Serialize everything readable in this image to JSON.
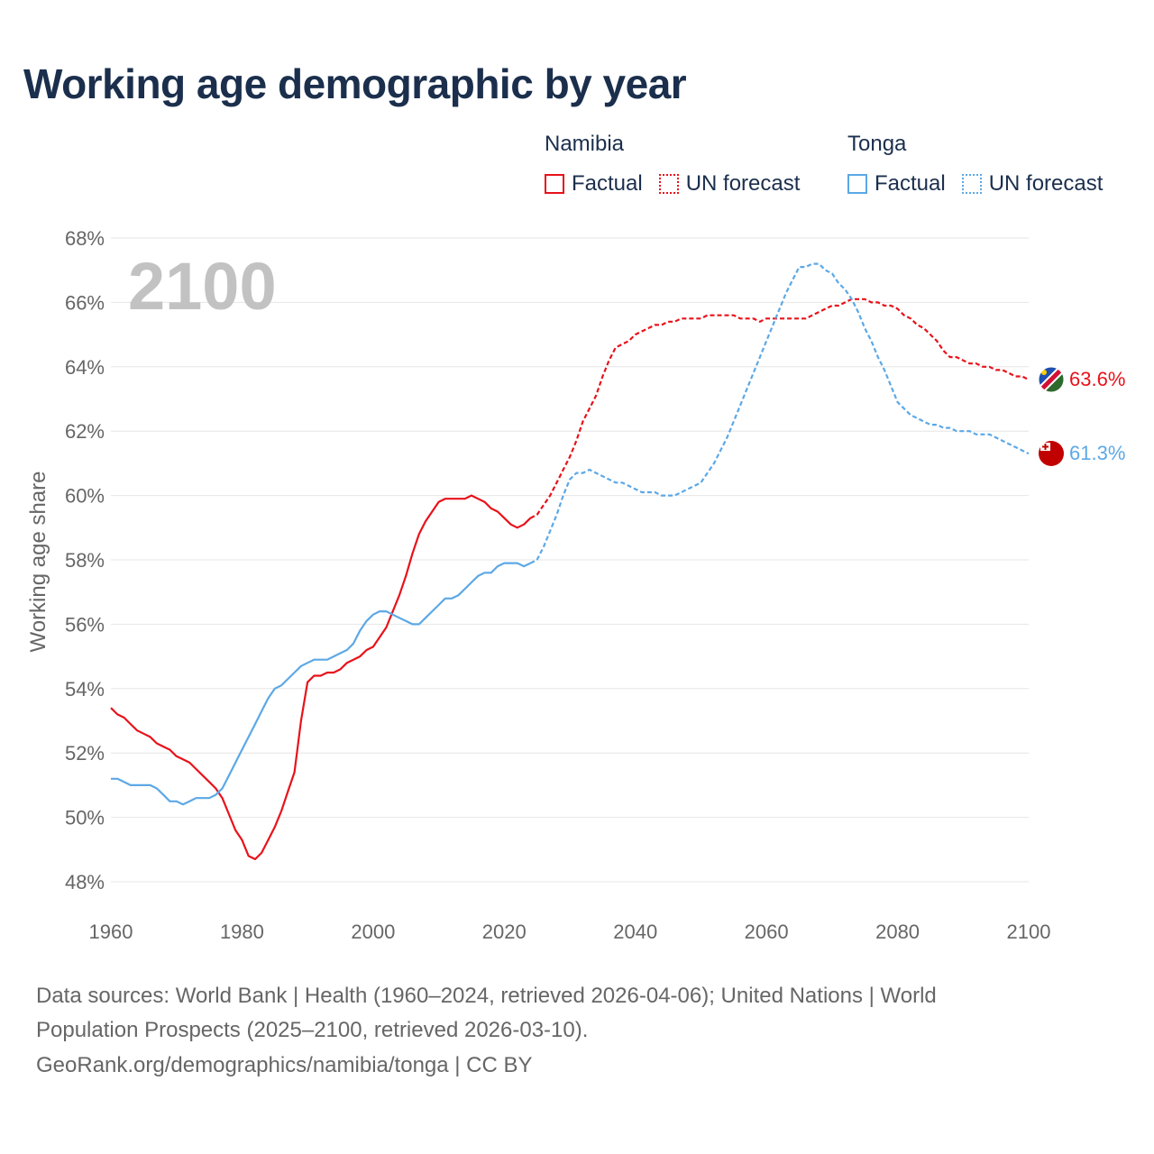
{
  "title": "Working age demographic by year",
  "legend": {
    "groups": [
      {
        "country": "Namibia",
        "factual_label": "Factual",
        "forecast_label": "UN forecast",
        "color": "#e8121a"
      },
      {
        "country": "Tonga",
        "factual_label": "Factual",
        "forecast_label": "UN forecast",
        "color": "#5ca8e6"
      }
    ]
  },
  "source": {
    "line1": "Data sources: World Bank | Health (1960–2024, retrieved 2026-04-06); United Nations | World",
    "line2": "Population Prospects (2025–2100, retrieved 2026-03-10).",
    "line3": "GeoRank.org/demographics/namibia/tonga | CC BY"
  },
  "chart_data": {
    "type": "line",
    "year_watermark": "2100",
    "ylabel": "Working age share",
    "xlim": [
      1960,
      2100
    ],
    "ylim": [
      48,
      68
    ],
    "x_ticks": [
      "1960",
      "1980",
      "2000",
      "2020",
      "2040",
      "2060",
      "2080",
      "2100"
    ],
    "y_ticks": [
      "48%",
      "50%",
      "52%",
      "54%",
      "56%",
      "58%",
      "60%",
      "62%",
      "64%",
      "66%",
      "68%"
    ],
    "grid": true,
    "series": [
      {
        "name": "Namibia",
        "color": "#e8121a",
        "end_label": "63.6%",
        "factual": [
          [
            1960,
            53.4
          ],
          [
            1961,
            53.2
          ],
          [
            1962,
            53.1
          ],
          [
            1963,
            52.9
          ],
          [
            1964,
            52.7
          ],
          [
            1965,
            52.6
          ],
          [
            1966,
            52.5
          ],
          [
            1967,
            52.3
          ],
          [
            1968,
            52.2
          ],
          [
            1969,
            52.1
          ],
          [
            1970,
            51.9
          ],
          [
            1971,
            51.8
          ],
          [
            1972,
            51.7
          ],
          [
            1973,
            51.5
          ],
          [
            1974,
            51.3
          ],
          [
            1975,
            51.1
          ],
          [
            1976,
            50.9
          ],
          [
            1977,
            50.6
          ],
          [
            1978,
            50.1
          ],
          [
            1979,
            49.6
          ],
          [
            1980,
            49.3
          ],
          [
            1981,
            48.8
          ],
          [
            1982,
            48.7
          ],
          [
            1983,
            48.9
          ],
          [
            1984,
            49.3
          ],
          [
            1985,
            49.7
          ],
          [
            1986,
            50.2
          ],
          [
            1987,
            50.8
          ],
          [
            1988,
            51.4
          ],
          [
            1989,
            53.0
          ],
          [
            1990,
            54.2
          ],
          [
            1991,
            54.4
          ],
          [
            1992,
            54.4
          ],
          [
            1993,
            54.5
          ],
          [
            1994,
            54.5
          ],
          [
            1995,
            54.6
          ],
          [
            1996,
            54.8
          ],
          [
            1997,
            54.9
          ],
          [
            1998,
            55.0
          ],
          [
            1999,
            55.2
          ],
          [
            2000,
            55.3
          ],
          [
            2001,
            55.6
          ],
          [
            2002,
            55.9
          ],
          [
            2003,
            56.4
          ],
          [
            2004,
            56.9
          ],
          [
            2005,
            57.5
          ],
          [
            2006,
            58.2
          ],
          [
            2007,
            58.8
          ],
          [
            2008,
            59.2
          ],
          [
            2009,
            59.5
          ],
          [
            2010,
            59.8
          ],
          [
            2011,
            59.9
          ],
          [
            2012,
            59.9
          ],
          [
            2013,
            59.9
          ],
          [
            2014,
            59.9
          ],
          [
            2015,
            60.0
          ],
          [
            2016,
            59.9
          ],
          [
            2017,
            59.8
          ],
          [
            2018,
            59.6
          ],
          [
            2019,
            59.5
          ],
          [
            2020,
            59.3
          ],
          [
            2021,
            59.1
          ],
          [
            2022,
            59.0
          ],
          [
            2023,
            59.1
          ],
          [
            2024,
            59.3
          ]
        ],
        "forecast": [
          [
            2024,
            59.3
          ],
          [
            2025,
            59.4
          ],
          [
            2026,
            59.7
          ],
          [
            2027,
            60.0
          ],
          [
            2028,
            60.4
          ],
          [
            2029,
            60.8
          ],
          [
            2030,
            61.2
          ],
          [
            2031,
            61.7
          ],
          [
            2032,
            62.3
          ],
          [
            2033,
            62.7
          ],
          [
            2034,
            63.1
          ],
          [
            2035,
            63.7
          ],
          [
            2036,
            64.2
          ],
          [
            2037,
            64.6
          ],
          [
            2038,
            64.7
          ],
          [
            2039,
            64.8
          ],
          [
            2040,
            65.0
          ],
          [
            2041,
            65.1
          ],
          [
            2042,
            65.2
          ],
          [
            2043,
            65.3
          ],
          [
            2044,
            65.3
          ],
          [
            2045,
            65.4
          ],
          [
            2046,
            65.4
          ],
          [
            2047,
            65.5
          ],
          [
            2048,
            65.5
          ],
          [
            2049,
            65.5
          ],
          [
            2050,
            65.5
          ],
          [
            2051,
            65.6
          ],
          [
            2052,
            65.6
          ],
          [
            2053,
            65.6
          ],
          [
            2054,
            65.6
          ],
          [
            2055,
            65.6
          ],
          [
            2056,
            65.5
          ],
          [
            2057,
            65.5
          ],
          [
            2058,
            65.5
          ],
          [
            2059,
            65.4
          ],
          [
            2060,
            65.5
          ],
          [
            2061,
            65.5
          ],
          [
            2062,
            65.5
          ],
          [
            2063,
            65.5
          ],
          [
            2064,
            65.5
          ],
          [
            2065,
            65.5
          ],
          [
            2066,
            65.5
          ],
          [
            2067,
            65.6
          ],
          [
            2068,
            65.7
          ],
          [
            2069,
            65.8
          ],
          [
            2070,
            65.9
          ],
          [
            2071,
            65.9
          ],
          [
            2072,
            66.0
          ],
          [
            2073,
            66.1
          ],
          [
            2074,
            66.1
          ],
          [
            2075,
            66.1
          ],
          [
            2076,
            66.0
          ],
          [
            2077,
            66.0
          ],
          [
            2078,
            65.9
          ],
          [
            2079,
            65.9
          ],
          [
            2080,
            65.8
          ],
          [
            2081,
            65.6
          ],
          [
            2082,
            65.5
          ],
          [
            2083,
            65.3
          ],
          [
            2084,
            65.2
          ],
          [
            2085,
            65.0
          ],
          [
            2086,
            64.8
          ],
          [
            2087,
            64.5
          ],
          [
            2088,
            64.3
          ],
          [
            2089,
            64.3
          ],
          [
            2090,
            64.2
          ],
          [
            2091,
            64.1
          ],
          [
            2092,
            64.1
          ],
          [
            2093,
            64.0
          ],
          [
            2094,
            64.0
          ],
          [
            2095,
            63.9
          ],
          [
            2096,
            63.9
          ],
          [
            2097,
            63.8
          ],
          [
            2098,
            63.7
          ],
          [
            2099,
            63.7
          ],
          [
            2100,
            63.6
          ]
        ]
      },
      {
        "name": "Tonga",
        "color": "#5ca8e6",
        "end_label": "61.3%",
        "factual": [
          [
            1960,
            51.2
          ],
          [
            1961,
            51.2
          ],
          [
            1962,
            51.1
          ],
          [
            1963,
            51.0
          ],
          [
            1964,
            51.0
          ],
          [
            1965,
            51.0
          ],
          [
            1966,
            51.0
          ],
          [
            1967,
            50.9
          ],
          [
            1968,
            50.7
          ],
          [
            1969,
            50.5
          ],
          [
            1970,
            50.5
          ],
          [
            1971,
            50.4
          ],
          [
            1972,
            50.5
          ],
          [
            1973,
            50.6
          ],
          [
            1974,
            50.6
          ],
          [
            1975,
            50.6
          ],
          [
            1976,
            50.7
          ],
          [
            1977,
            50.9
          ],
          [
            1978,
            51.3
          ],
          [
            1979,
            51.7
          ],
          [
            1980,
            52.1
          ],
          [
            1981,
            52.5
          ],
          [
            1982,
            52.9
          ],
          [
            1983,
            53.3
          ],
          [
            1984,
            53.7
          ],
          [
            1985,
            54.0
          ],
          [
            1986,
            54.1
          ],
          [
            1987,
            54.3
          ],
          [
            1988,
            54.5
          ],
          [
            1989,
            54.7
          ],
          [
            1990,
            54.8
          ],
          [
            1991,
            54.9
          ],
          [
            1992,
            54.9
          ],
          [
            1993,
            54.9
          ],
          [
            1994,
            55.0
          ],
          [
            1995,
            55.1
          ],
          [
            1996,
            55.2
          ],
          [
            1997,
            55.4
          ],
          [
            1998,
            55.8
          ],
          [
            1999,
            56.1
          ],
          [
            2000,
            56.3
          ],
          [
            2001,
            56.4
          ],
          [
            2002,
            56.4
          ],
          [
            2003,
            56.3
          ],
          [
            2004,
            56.2
          ],
          [
            2005,
            56.1
          ],
          [
            2006,
            56.0
          ],
          [
            2007,
            56.0
          ],
          [
            2008,
            56.2
          ],
          [
            2009,
            56.4
          ],
          [
            2010,
            56.6
          ],
          [
            2011,
            56.8
          ],
          [
            2012,
            56.8
          ],
          [
            2013,
            56.9
          ],
          [
            2014,
            57.1
          ],
          [
            2015,
            57.3
          ],
          [
            2016,
            57.5
          ],
          [
            2017,
            57.6
          ],
          [
            2018,
            57.6
          ],
          [
            2019,
            57.8
          ],
          [
            2020,
            57.9
          ],
          [
            2021,
            57.9
          ],
          [
            2022,
            57.9
          ],
          [
            2023,
            57.8
          ],
          [
            2024,
            57.9
          ]
        ],
        "forecast": [
          [
            2024,
            57.9
          ],
          [
            2025,
            58.0
          ],
          [
            2026,
            58.4
          ],
          [
            2027,
            58.9
          ],
          [
            2028,
            59.4
          ],
          [
            2029,
            60.0
          ],
          [
            2030,
            60.5
          ],
          [
            2031,
            60.7
          ],
          [
            2032,
            60.7
          ],
          [
            2033,
            60.8
          ],
          [
            2034,
            60.7
          ],
          [
            2035,
            60.6
          ],
          [
            2036,
            60.5
          ],
          [
            2037,
            60.4
          ],
          [
            2038,
            60.4
          ],
          [
            2039,
            60.3
          ],
          [
            2040,
            60.2
          ],
          [
            2041,
            60.1
          ],
          [
            2042,
            60.1
          ],
          [
            2043,
            60.1
          ],
          [
            2044,
            60.0
          ],
          [
            2045,
            60.0
          ],
          [
            2046,
            60.0
          ],
          [
            2047,
            60.1
          ],
          [
            2048,
            60.2
          ],
          [
            2049,
            60.3
          ],
          [
            2050,
            60.4
          ],
          [
            2051,
            60.7
          ],
          [
            2052,
            61.0
          ],
          [
            2053,
            61.4
          ],
          [
            2054,
            61.8
          ],
          [
            2055,
            62.3
          ],
          [
            2056,
            62.8
          ],
          [
            2057,
            63.3
          ],
          [
            2058,
            63.8
          ],
          [
            2059,
            64.3
          ],
          [
            2060,
            64.8
          ],
          [
            2061,
            65.3
          ],
          [
            2062,
            65.8
          ],
          [
            2063,
            66.3
          ],
          [
            2064,
            66.7
          ],
          [
            2065,
            67.1
          ],
          [
            2066,
            67.1
          ],
          [
            2067,
            67.2
          ],
          [
            2068,
            67.2
          ],
          [
            2069,
            67.0
          ],
          [
            2070,
            66.9
          ],
          [
            2071,
            66.6
          ],
          [
            2072,
            66.4
          ],
          [
            2073,
            66.1
          ],
          [
            2074,
            65.7
          ],
          [
            2075,
            65.2
          ],
          [
            2076,
            64.8
          ],
          [
            2077,
            64.3
          ],
          [
            2078,
            63.9
          ],
          [
            2079,
            63.4
          ],
          [
            2080,
            62.9
          ],
          [
            2081,
            62.7
          ],
          [
            2082,
            62.5
          ],
          [
            2083,
            62.4
          ],
          [
            2084,
            62.3
          ],
          [
            2085,
            62.2
          ],
          [
            2086,
            62.2
          ],
          [
            2087,
            62.1
          ],
          [
            2088,
            62.1
          ],
          [
            2089,
            62.0
          ],
          [
            2090,
            62.0
          ],
          [
            2091,
            62.0
          ],
          [
            2092,
            61.9
          ],
          [
            2093,
            61.9
          ],
          [
            2094,
            61.9
          ],
          [
            2095,
            61.8
          ],
          [
            2096,
            61.7
          ],
          [
            2097,
            61.6
          ],
          [
            2098,
            61.5
          ],
          [
            2099,
            61.4
          ],
          [
            2100,
            61.3
          ]
        ]
      }
    ]
  }
}
